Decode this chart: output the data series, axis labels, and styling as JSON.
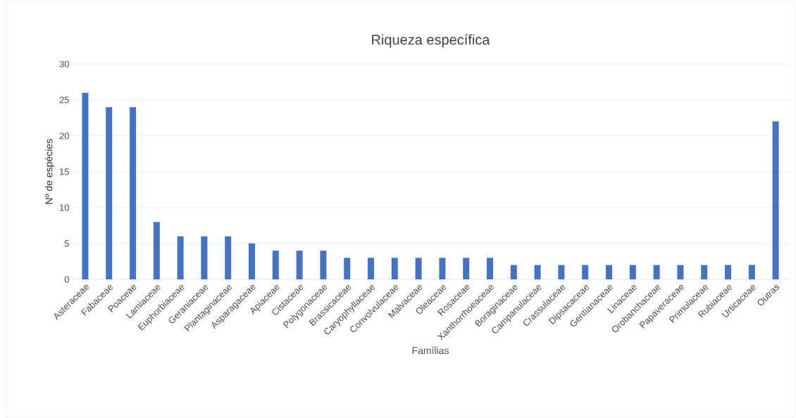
{
  "chart_data": {
    "type": "bar",
    "title": "Riqueza específica",
    "xlabel": "Famílias",
    "ylabel": "Nº de espécies",
    "categories": [
      "Asteraceae",
      "Fabaceae",
      "Poaceae",
      "Lamiaceae",
      "Euphorbiaceae",
      "Geraniaceae",
      "Plantaginaceae",
      "Asparagaceae",
      "Apiaceae",
      "Cistaceae",
      "Polygonaceae",
      "Brassicaceae",
      "Caryophyllaceae",
      "Convolvulaceae",
      "Malvaceae",
      "Oleaceae",
      "Rosaceae",
      "Xanthorrhoeaceae",
      "Boraginaceae",
      "Campanulaceae",
      "Crassulaceae",
      "Dipsacaceae",
      "Gentianaceae",
      "Linaceae",
      "Orobanchaceae",
      "Papaveraceae",
      "Primulaceae",
      "Rubiaceae",
      "Urticaceae",
      "Outras"
    ],
    "values": [
      26,
      24,
      24,
      8,
      6,
      6,
      6,
      5,
      4,
      4,
      4,
      3,
      3,
      3,
      3,
      3,
      3,
      3,
      2,
      2,
      2,
      2,
      2,
      2,
      2,
      2,
      2,
      2,
      2,
      22
    ],
    "color": "#4472c4",
    "ylim": [
      0,
      30
    ],
    "yticks": [
      0,
      5,
      10,
      15,
      20,
      25,
      30
    ],
    "grid": "y"
  }
}
